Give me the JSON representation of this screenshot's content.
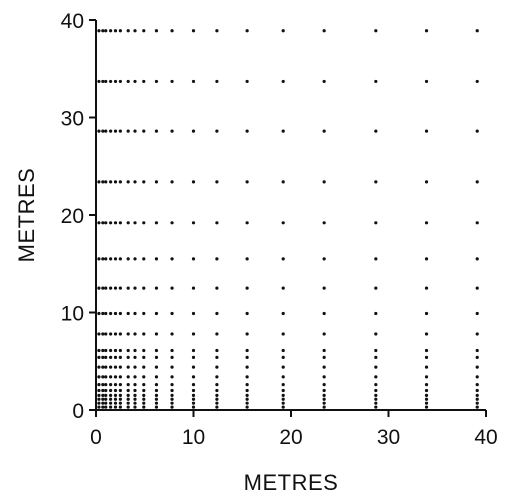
{
  "chart_data": {
    "type": "scatter",
    "title": "",
    "xlabel": "METRES",
    "ylabel": "METRES",
    "xlim": [
      0,
      40
    ],
    "ylim": [
      0,
      40
    ],
    "grid": false,
    "legend": "none",
    "x_ticks": [
      0,
      10,
      20,
      30,
      40
    ],
    "y_ticks": [
      0,
      10,
      20,
      30,
      40
    ],
    "x_tick_labels": [
      "0",
      "10",
      "20",
      "30",
      "40"
    ],
    "y_tick_labels": [
      "0",
      "10",
      "20",
      "30",
      "40"
    ],
    "grid_x_values": [
      0.3,
      0.7,
      1.0,
      1.5,
      2.0,
      2.5,
      3.3,
      4.0,
      4.9,
      6.2,
      7.8,
      10.0,
      12.4,
      15.5,
      19.2,
      23.4,
      28.7,
      33.9,
      39.1
    ],
    "grid_y_values": [
      0.3,
      0.7,
      1.1,
      1.5,
      2.0,
      2.6,
      3.4,
      4.4,
      5.4,
      6.1,
      7.8,
      9.9,
      12.5,
      15.5,
      19.2,
      23.4,
      28.6,
      33.7,
      38.9
    ],
    "series": [
      {
        "points": "full cartesian grid of grid_x_values × grid_y_values"
      }
    ],
    "color": "#111111"
  }
}
